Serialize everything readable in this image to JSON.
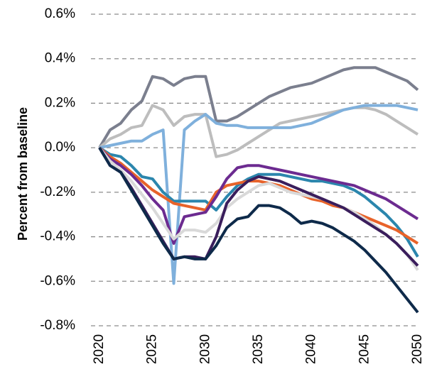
{
  "chart_data": {
    "type": "line",
    "y_label": "Percent from baseline",
    "x": [
      2020,
      2021,
      2022,
      2023,
      2024,
      2025,
      2026,
      2027,
      2028,
      2029,
      2030,
      2031,
      2032,
      2033,
      2034,
      2035,
      2036,
      2037,
      2038,
      2039,
      2040,
      2041,
      2042,
      2043,
      2044,
      2045,
      2046,
      2047,
      2048,
      2049,
      2050
    ],
    "xlim": [
      2020,
      2050
    ],
    "xticks": [
      2020,
      2025,
      2030,
      2035,
      2040,
      2045,
      2050
    ],
    "ylim": [
      -0.8,
      0.6
    ],
    "yticks": [
      {
        "value": -0.8,
        "label": "-0.8%"
      },
      {
        "value": -0.6,
        "label": "-0.6%"
      },
      {
        "value": -0.4,
        "label": "-0.4%"
      },
      {
        "value": -0.2,
        "label": "-0.2%"
      },
      {
        "value": 0,
        "label": "0.0%"
      },
      {
        "value": 0.2,
        "label": "0.2%"
      },
      {
        "value": 0.4,
        "label": "0.4%"
      },
      {
        "value": 0.6,
        "label": "0.6%"
      }
    ],
    "grid": true,
    "series": [
      {
        "color": "#7b7f8e",
        "values": [
          0,
          0.08,
          0.11,
          0.17,
          0.21,
          0.32,
          0.31,
          0.28,
          0.31,
          0.32,
          0.32,
          0.12,
          0.12,
          0.14,
          0.17,
          0.2,
          0.23,
          0.25,
          0.27,
          0.28,
          0.29,
          0.31,
          0.33,
          0.35,
          0.36,
          0.36,
          0.36,
          0.34,
          0.32,
          0.3,
          0.26
        ]
      },
      {
        "color": "#bdbdbd",
        "values": [
          0,
          0.04,
          0.06,
          0.09,
          0.1,
          0.19,
          0.17,
          0.1,
          0.14,
          0.15,
          0.15,
          -0.04,
          -0.03,
          -0.01,
          0.02,
          0.05,
          0.08,
          0.11,
          0.12,
          0.13,
          0.14,
          0.15,
          0.16,
          0.17,
          0.18,
          0.18,
          0.17,
          0.15,
          0.12,
          0.09,
          0.06
        ]
      },
      {
        "color": "#7fb0dc",
        "values": [
          0,
          0.01,
          0.02,
          0.03,
          0.03,
          0.06,
          0.08,
          -0.61,
          0.08,
          0.12,
          0.15,
          0.11,
          0.1,
          0.1,
          0.09,
          0.09,
          0.09,
          0.09,
          0.09,
          0.1,
          0.11,
          0.13,
          0.15,
          0.17,
          0.18,
          0.19,
          0.19,
          0.19,
          0.19,
          0.18,
          0.17
        ]
      },
      {
        "color": "#2b86ad",
        "values": [
          0,
          -0.03,
          -0.04,
          -0.08,
          -0.13,
          -0.14,
          -0.2,
          -0.24,
          -0.24,
          -0.24,
          -0.24,
          -0.28,
          -0.22,
          -0.17,
          -0.14,
          -0.12,
          -0.12,
          -0.12,
          -0.13,
          -0.14,
          -0.15,
          -0.15,
          -0.16,
          -0.17,
          -0.19,
          -0.22,
          -0.26,
          -0.3,
          -0.35,
          -0.41,
          -0.49
        ]
      },
      {
        "color": "#e8632a",
        "values": [
          0,
          -0.04,
          -0.07,
          -0.11,
          -0.15,
          -0.19,
          -0.22,
          -0.25,
          -0.26,
          -0.27,
          -0.28,
          -0.2,
          -0.17,
          -0.16,
          -0.15,
          -0.15,
          -0.16,
          -0.17,
          -0.19,
          -0.21,
          -0.23,
          -0.24,
          -0.26,
          -0.27,
          -0.29,
          -0.31,
          -0.33,
          -0.35,
          -0.37,
          -0.4,
          -0.43
        ]
      },
      {
        "color": "#6c2b90",
        "values": [
          0,
          -0.05,
          -0.08,
          -0.12,
          -0.17,
          -0.23,
          -0.28,
          -0.43,
          -0.31,
          -0.3,
          -0.29,
          -0.22,
          -0.14,
          -0.09,
          -0.08,
          -0.08,
          -0.09,
          -0.1,
          -0.11,
          -0.12,
          -0.13,
          -0.14,
          -0.15,
          -0.16,
          -0.17,
          -0.19,
          -0.21,
          -0.23,
          -0.26,
          -0.29,
          -0.32
        ]
      },
      {
        "color": "#d9d9d9",
        "values": [
          0,
          -0.06,
          -0.1,
          -0.15,
          -0.21,
          -0.27,
          -0.34,
          -0.41,
          -0.37,
          -0.37,
          -0.38,
          -0.34,
          -0.27,
          -0.23,
          -0.2,
          -0.17,
          -0.16,
          -0.18,
          -0.2,
          -0.21,
          -0.22,
          -0.23,
          -0.25,
          -0.27,
          -0.29,
          -0.32,
          -0.35,
          -0.39,
          -0.43,
          -0.48,
          -0.55
        ]
      },
      {
        "color": "#3a1e5c",
        "values": [
          0,
          -0.08,
          -0.11,
          -0.18,
          -0.26,
          -0.34,
          -0.42,
          -0.5,
          -0.49,
          -0.49,
          -0.5,
          -0.4,
          -0.25,
          -0.19,
          -0.15,
          -0.13,
          -0.14,
          -0.15,
          -0.17,
          -0.19,
          -0.21,
          -0.23,
          -0.25,
          -0.27,
          -0.3,
          -0.33,
          -0.36,
          -0.39,
          -0.43,
          -0.48,
          -0.53
        ]
      },
      {
        "color": "#0e2a4a",
        "values": [
          0,
          -0.08,
          -0.11,
          -0.19,
          -0.27,
          -0.35,
          -0.43,
          -0.5,
          -0.49,
          -0.5,
          -0.5,
          -0.44,
          -0.36,
          -0.32,
          -0.31,
          -0.26,
          -0.26,
          -0.27,
          -0.3,
          -0.34,
          -0.33,
          -0.34,
          -0.36,
          -0.39,
          -0.42,
          -0.46,
          -0.51,
          -0.56,
          -0.62,
          -0.68,
          -0.74
        ]
      }
    ]
  }
}
